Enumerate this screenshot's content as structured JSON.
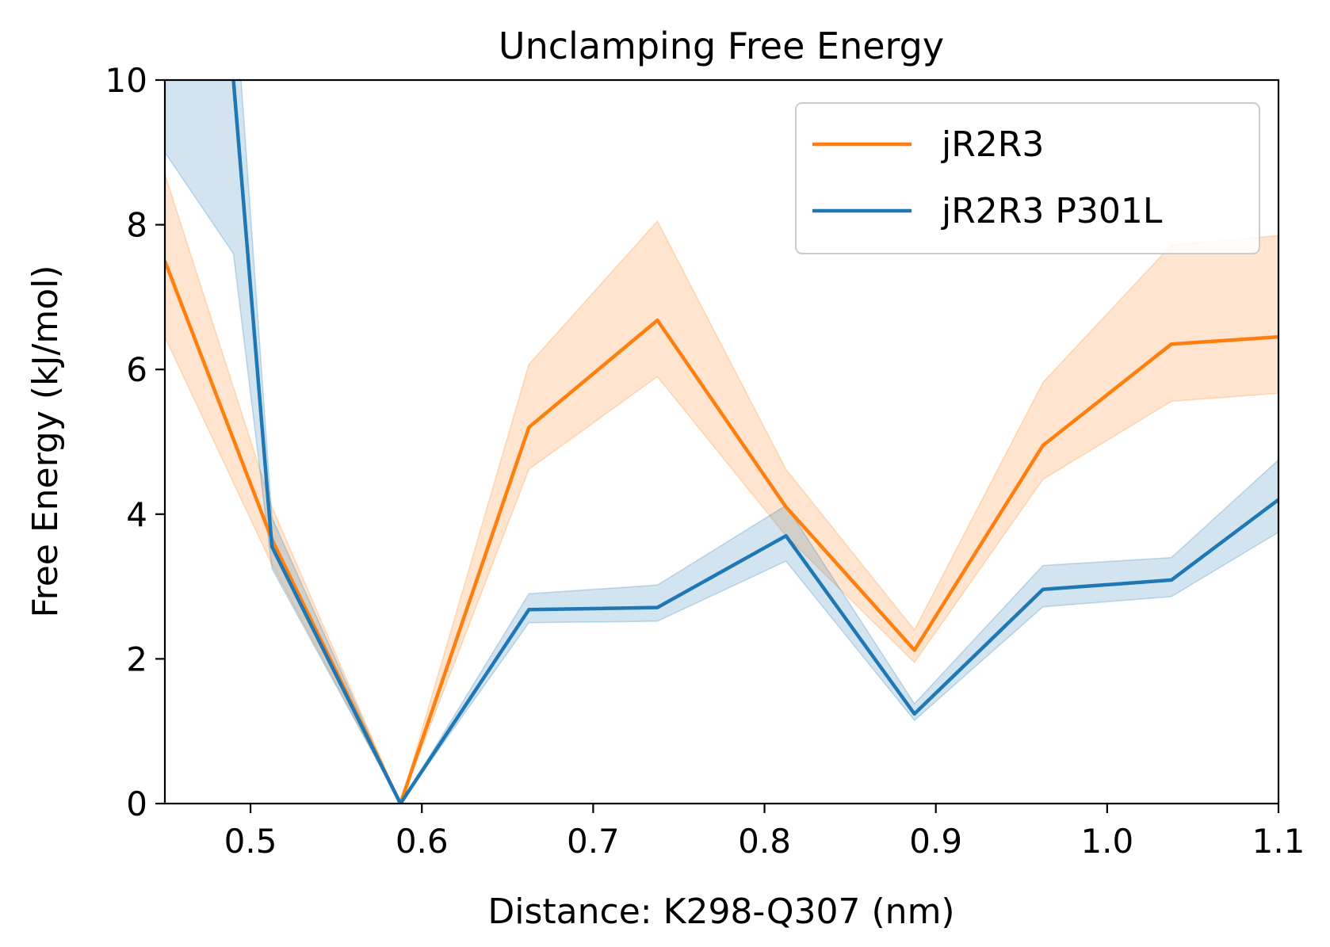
{
  "chart_data": {
    "type": "line",
    "title": "Unclamping Free Energy",
    "xlabel": "Distance: K298-Q307 (nm)",
    "ylabel": "Free Energy (kJ/mol)",
    "xlim": [
      0.45,
      1.1
    ],
    "ylim": [
      0,
      10
    ],
    "xticks": [
      0.5,
      0.6,
      0.7,
      0.8,
      0.9,
      1.0,
      1.1
    ],
    "xtick_labels": [
      "0.5",
      "0.6",
      "0.7",
      "0.8",
      "0.9",
      "1.0",
      "1.1"
    ],
    "yticks": [
      0,
      2,
      4,
      6,
      8,
      10
    ],
    "ytick_labels": [
      "0",
      "2",
      "4",
      "6",
      "8",
      "10"
    ],
    "legend_position": "top-right",
    "grid": false,
    "series": [
      {
        "name": "jR2R3",
        "color": "#ff7f0e",
        "x": [
          0.45,
          0.5125,
          0.5875,
          0.6625,
          0.7375,
          0.8125,
          0.8875,
          0.9625,
          1.0375,
          1.1
        ],
        "y": [
          7.5,
          3.65,
          0.0,
          5.2,
          6.68,
          4.1,
          2.12,
          4.95,
          6.35,
          6.45
        ],
        "y_lower": [
          6.45,
          3.3,
          0.0,
          4.62,
          5.9,
          3.7,
          1.95,
          4.48,
          5.56,
          5.67
        ],
        "y_upper": [
          8.7,
          4.1,
          0.0,
          6.07,
          8.05,
          4.62,
          2.4,
          5.82,
          7.72,
          7.85
        ]
      },
      {
        "name": "jR2R3 P301L",
        "color": "#1f77b4",
        "x": [
          0.45,
          0.49,
          0.5125,
          0.5875,
          0.6625,
          0.7375,
          0.8125,
          0.8875,
          0.9625,
          1.0375,
          1.1
        ],
        "y": [
          11.8,
          10.0,
          3.55,
          0.0,
          2.68,
          2.71,
          3.7,
          1.24,
          2.96,
          3.09,
          4.2
        ],
        "y_lower": [
          9.0,
          7.6,
          3.25,
          0.0,
          2.5,
          2.52,
          3.35,
          1.15,
          2.72,
          2.86,
          3.75
        ],
        "y_upper": [
          13.0,
          11.5,
          3.95,
          0.0,
          2.9,
          3.02,
          4.12,
          1.38,
          3.29,
          3.4,
          4.75
        ]
      }
    ]
  }
}
